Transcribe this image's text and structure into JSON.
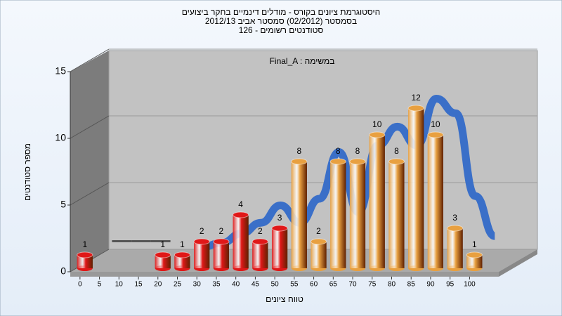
{
  "chart_data": {
    "type": "bar3d",
    "title": "היסטוגרמת ציונים בקורס - מודלים דינמיים בחקר ביצועים",
    "subtitle": "בסמסטר  (02/2012)  סמסטר אביב 2012/13",
    "subtitle2": "סטודנטים רשומים - 126",
    "annotation": "Final_A : במשימה",
    "ylabel": "מספר סטודנטים",
    "xlabel": "טווח ציונים",
    "categories": [
      "0",
      "5",
      "10",
      "15",
      "20",
      "25",
      "30",
      "35",
      "40",
      "45",
      "50",
      "55",
      "60",
      "65",
      "70",
      "75",
      "80",
      "85",
      "90",
      "95",
      "100"
    ],
    "values": [
      1,
      0,
      0,
      0,
      1,
      1,
      2,
      2,
      4,
      2,
      3,
      8,
      2,
      8,
      8,
      10,
      8,
      12,
      10,
      3,
      1
    ],
    "colors": [
      "#e01818",
      "#e01818",
      "#e01818",
      "#e01818",
      "#e01818",
      "#e01818",
      "#e01818",
      "#e01818",
      "#e01818",
      "#e01818",
      "#e01818",
      "#e8a040",
      "#e8a040",
      "#e8a040",
      "#e8a040",
      "#e8a040",
      "#e8a040",
      "#e8a040",
      "#e8a040",
      "#e8a040",
      "#e8a040"
    ],
    "trend": {
      "color": "#3a6fc8",
      "values": [
        null,
        null,
        null,
        null,
        null,
        1.2,
        1.5,
        2.2,
        3,
        4.3,
        3,
        4.8,
        8.3,
        3.8,
        8.8,
        10.2,
        8.8,
        12.3,
        11.2,
        5,
        2
      ]
    },
    "ylim": [
      0,
      15
    ],
    "yticks": [
      0,
      5,
      10,
      15
    ],
    "grid": true
  }
}
